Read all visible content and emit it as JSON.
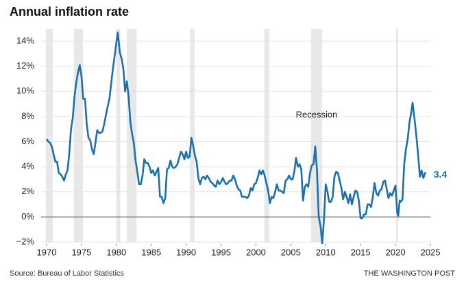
{
  "chart_data": {
    "type": "line",
    "title": "Annual inflation rate",
    "source": "Source: Bureau of Labor Statistics",
    "credit": "THE WASHINGTON POST",
    "annotation": "Recession",
    "recessions": [
      [
        1969.9,
        1970.9
      ],
      [
        1973.9,
        1975.2
      ],
      [
        1980.0,
        1980.55
      ],
      [
        1981.5,
        1982.9
      ],
      [
        1990.55,
        1991.2
      ],
      [
        2001.2,
        2001.9
      ],
      [
        2007.9,
        2009.5
      ],
      [
        2020.1,
        2020.4
      ]
    ],
    "recession_color": "#e8e8e8",
    "xlim": [
      1970,
      2025
    ],
    "xticks": [
      1970,
      1975,
      1980,
      1985,
      1990,
      1995,
      2000,
      2005,
      2010,
      2015,
      2020,
      2025
    ],
    "ylim": [
      -2,
      14
    ],
    "yticks": [
      {
        "value": -2,
        "label": "−2%"
      },
      {
        "value": 0,
        "label": "0%"
      },
      {
        "value": 2,
        "label": "2%"
      },
      {
        "value": 4,
        "label": "4%"
      },
      {
        "value": 6,
        "label": "6%"
      },
      {
        "value": 8,
        "label": "8%"
      },
      {
        "value": 10,
        "label": "10%"
      },
      {
        "value": 12,
        "label": "12%"
      },
      {
        "value": 14,
        "label": "14%"
      }
    ],
    "grid": true,
    "end_label": 3.4,
    "series": [
      {
        "name": "Inflation",
        "color": "#1b6fad",
        "x": [
          1970.0,
          1970.25,
          1970.5,
          1970.75,
          1971.0,
          1971.25,
          1971.5,
          1971.75,
          1972.0,
          1972.25,
          1972.5,
          1972.75,
          1973.0,
          1973.25,
          1973.5,
          1973.75,
          1974.0,
          1974.25,
          1974.5,
          1974.75,
          1975.0,
          1975.25,
          1975.5,
          1975.75,
          1976.0,
          1976.25,
          1976.5,
          1976.75,
          1977.0,
          1977.25,
          1977.5,
          1977.75,
          1978.0,
          1978.25,
          1978.5,
          1978.75,
          1979.0,
          1979.25,
          1979.5,
          1979.75,
          1980.0,
          1980.2,
          1980.5,
          1980.75,
          1981.0,
          1981.25,
          1981.5,
          1981.75,
          1982.0,
          1982.25,
          1982.5,
          1982.75,
          1983.0,
          1983.25,
          1983.5,
          1983.75,
          1984.0,
          1984.25,
          1984.5,
          1984.75,
          1985.0,
          1985.25,
          1985.5,
          1985.75,
          1986.0,
          1986.25,
          1986.5,
          1986.75,
          1987.0,
          1987.25,
          1987.5,
          1987.75,
          1988.0,
          1988.25,
          1988.5,
          1988.75,
          1989.0,
          1989.25,
          1989.5,
          1989.75,
          1990.0,
          1990.25,
          1990.5,
          1990.75,
          1991.0,
          1991.25,
          1991.5,
          1991.75,
          1992.0,
          1992.25,
          1992.5,
          1992.75,
          1993.0,
          1993.25,
          1993.5,
          1993.75,
          1994.0,
          1994.25,
          1994.5,
          1994.75,
          1995.0,
          1995.25,
          1995.5,
          1995.75,
          1996.0,
          1996.25,
          1996.5,
          1996.75,
          1997.0,
          1997.25,
          1997.5,
          1997.75,
          1998.0,
          1998.25,
          1998.5,
          1998.75,
          1999.0,
          1999.25,
          1999.5,
          1999.75,
          2000.0,
          2000.25,
          2000.5,
          2000.75,
          2001.0,
          2001.25,
          2001.5,
          2001.75,
          2002.0,
          2002.25,
          2002.5,
          2002.75,
          2003.0,
          2003.25,
          2003.5,
          2003.75,
          2004.0,
          2004.25,
          2004.5,
          2004.75,
          2005.0,
          2005.25,
          2005.5,
          2005.75,
          2006.0,
          2006.25,
          2006.5,
          2006.75,
          2007.0,
          2007.25,
          2007.5,
          2007.75,
          2008.0,
          2008.25,
          2008.5,
          2008.75,
          2009.0,
          2009.25,
          2009.5,
          2009.75,
          2010.0,
          2010.25,
          2010.5,
          2010.75,
          2011.0,
          2011.25,
          2011.5,
          2011.75,
          2012.0,
          2012.25,
          2012.5,
          2012.75,
          2013.0,
          2013.25,
          2013.5,
          2013.75,
          2014.0,
          2014.25,
          2014.5,
          2014.75,
          2015.0,
          2015.25,
          2015.5,
          2015.75,
          2016.0,
          2016.25,
          2016.5,
          2016.75,
          2017.0,
          2017.25,
          2017.5,
          2017.75,
          2018.0,
          2018.25,
          2018.5,
          2018.75,
          2019.0,
          2019.25,
          2019.5,
          2019.75,
          2020.0,
          2020.25,
          2020.4,
          2020.6,
          2020.75,
          2021.0,
          2021.25,
          2021.5,
          2021.75,
          2022.0,
          2022.25,
          2022.45,
          2022.75,
          2023.0,
          2023.25,
          2023.5,
          2023.75,
          2024.0,
          2024.25,
          2024.3
        ],
        "values": [
          6.2,
          6.0,
          5.9,
          5.6,
          5.0,
          4.4,
          4.4,
          3.5,
          3.4,
          3.2,
          2.9,
          3.4,
          3.7,
          5.1,
          7.0,
          7.9,
          9.6,
          10.7,
          11.5,
          12.1,
          11.2,
          9.4,
          9.4,
          7.4,
          6.3,
          6.1,
          5.4,
          5.0,
          5.9,
          6.9,
          6.7,
          6.7,
          6.8,
          7.4,
          8.1,
          8.8,
          9.4,
          10.6,
          11.8,
          12.8,
          13.9,
          14.7,
          13.1,
          12.6,
          11.8,
          10.0,
          10.8,
          9.6,
          7.6,
          6.6,
          5.9,
          4.5,
          3.6,
          2.6,
          2.6,
          3.3,
          4.6,
          4.3,
          4.3,
          4.0,
          3.5,
          3.7,
          3.3,
          3.6,
          3.9,
          1.6,
          1.6,
          1.1,
          1.5,
          3.8,
          3.9,
          4.5,
          4.0,
          3.9,
          4.0,
          4.2,
          4.7,
          5.2,
          5.0,
          4.6,
          5.2,
          4.7,
          4.8,
          6.3,
          5.7,
          4.9,
          4.4,
          3.1,
          2.6,
          3.1,
          3.2,
          3.0,
          3.3,
          3.1,
          2.8,
          2.7,
          2.5,
          2.4,
          2.9,
          2.6,
          2.8,
          3.1,
          2.8,
          2.6,
          2.7,
          2.9,
          2.9,
          3.3,
          3.0,
          2.5,
          2.2,
          2.1,
          1.6,
          1.6,
          1.6,
          1.5,
          1.7,
          2.3,
          2.1,
          2.6,
          2.7,
          3.1,
          3.7,
          3.4,
          3.7,
          3.3,
          2.7,
          2.1,
          1.1,
          1.6,
          1.5,
          2.0,
          2.6,
          2.1,
          2.1,
          2.0,
          1.9,
          2.9,
          3.0,
          3.3,
          3.0,
          3.0,
          3.6,
          4.7,
          4.0,
          4.2,
          3.8,
          1.3,
          2.4,
          2.6,
          2.4,
          3.5,
          4.1,
          4.2,
          5.6,
          3.7,
          0.0,
          -0.7,
          -2.1,
          -0.2,
          2.6,
          2.0,
          1.2,
          1.2,
          1.6,
          3.2,
          3.6,
          3.5,
          2.9,
          2.3,
          1.4,
          2.0,
          1.6,
          1.1,
          1.8,
          1.0,
          1.6,
          2.1,
          2.0,
          1.3,
          -0.1,
          -0.1,
          0.2,
          0.2,
          1.0,
          1.0,
          0.8,
          1.6,
          2.7,
          1.9,
          1.7,
          2.1,
          2.2,
          2.8,
          2.9,
          2.2,
          1.5,
          1.9,
          1.7,
          2.1,
          2.5,
          0.3,
          0.1,
          1.3,
          1.2,
          1.4,
          4.2,
          5.4,
          6.2,
          7.5,
          8.3,
          9.1,
          7.7,
          6.4,
          4.9,
          3.2,
          3.7,
          3.1,
          3.5,
          3.4
        ]
      }
    ]
  }
}
